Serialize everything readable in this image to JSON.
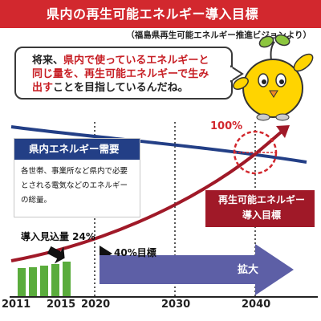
{
  "header": {
    "title": "県内の再生可能エネルギー導入目標",
    "source": "（福島県再生可能エネルギー推進ビジョンより）"
  },
  "bubble": {
    "line1_a": "将来、",
    "line1_b": "県内で使っているエネルギーと",
    "line2_a": "同じ量を、再生可能エネルギーで生み",
    "line3_a": "出す",
    "line3_b": "ことを目指しているんだね。"
  },
  "chart": {
    "demand_title": "県内エネルギー需要",
    "demand_description": "各世帯、事業所など県内で必要とされる電気などのエネルギーの総量。",
    "renewable_label_line1": "再生可能エネルギー",
    "renewable_label_line2": "導入目標",
    "label_100": "100%",
    "label_24": "導入見込量 24%",
    "label_40": "40%目標",
    "expand_label": "拡大",
    "years": [
      "2011",
      "2015",
      "2020",
      "2030",
      "2040"
    ]
  },
  "colors": {
    "title_bg": "#d2282e",
    "demand_line": "#233f86",
    "renewable_line": "#a01928",
    "bars": "#5aac3c",
    "arrow": "#5d5fa6"
  },
  "icons": {
    "mascot": "mascot-icon"
  }
}
